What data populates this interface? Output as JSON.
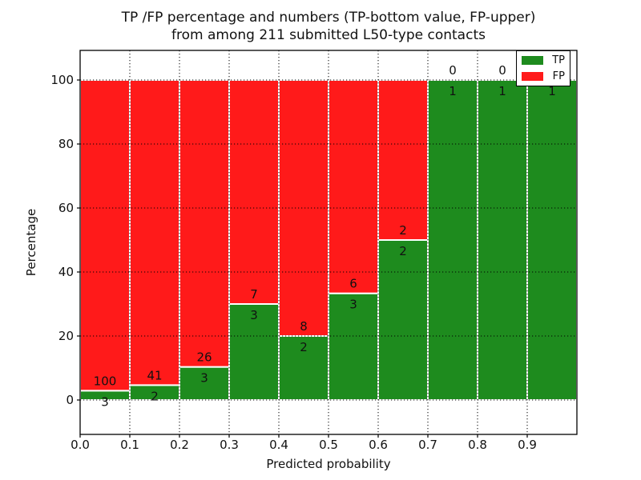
{
  "chart_data": {
    "type": "stacked_bar",
    "title_line1": "TP /FP percentage and numbers (TP-bottom value, FP-upper)",
    "title_line2": "from among 211 submitted L50-type contacts",
    "xlabel": "Predicted probability",
    "ylabel": "Percentage",
    "x_ticks": [
      "0.0",
      "0.1",
      "0.2",
      "0.3",
      "0.4",
      "0.5",
      "0.6",
      "0.7",
      "0.8",
      "0.9"
    ],
    "y_ticks": [
      0,
      20,
      40,
      60,
      80,
      100
    ],
    "xlim": [
      0.0,
      1.0
    ],
    "ylim": [
      -10.75,
      109.25
    ],
    "bar_width": 0.1,
    "grid": "black dotted, vertical at x ticks and horizontal at y ticks",
    "annotation_rule": "FP count printed just above TP/FP boundary, TP count just below it",
    "colors": {
      "tp": "#1e8b1e",
      "fp": "#ff1a1a",
      "bar_edge": "#ffffff",
      "grid": "#000000"
    },
    "legend": {
      "position": "upper right",
      "entries": [
        {
          "label": "TP",
          "color": "#1e8b1e"
        },
        {
          "label": "FP",
          "color": "#ff1a1a"
        }
      ]
    },
    "bars": [
      {
        "x_start": 0.0,
        "x_end": 0.1,
        "tp_count": 3,
        "fp_count": 100,
        "tp_pct": 2.913,
        "fp_pct": 97.087
      },
      {
        "x_start": 0.1,
        "x_end": 0.2,
        "tp_count": 2,
        "fp_count": 41,
        "tp_pct": 4.651,
        "fp_pct": 95.349
      },
      {
        "x_start": 0.2,
        "x_end": 0.3,
        "tp_count": 3,
        "fp_count": 26,
        "tp_pct": 10.345,
        "fp_pct": 89.655
      },
      {
        "x_start": 0.3,
        "x_end": 0.4,
        "tp_count": 3,
        "fp_count": 7,
        "tp_pct": 30.0,
        "fp_pct": 70.0
      },
      {
        "x_start": 0.4,
        "x_end": 0.5,
        "tp_count": 2,
        "fp_count": 8,
        "tp_pct": 20.0,
        "fp_pct": 80.0
      },
      {
        "x_start": 0.5,
        "x_end": 0.6,
        "tp_count": 3,
        "fp_count": 6,
        "tp_pct": 33.333,
        "fp_pct": 66.667
      },
      {
        "x_start": 0.6,
        "x_end": 0.7,
        "tp_count": 2,
        "fp_count": 2,
        "tp_pct": 50.0,
        "fp_pct": 50.0
      },
      {
        "x_start": 0.7,
        "x_end": 0.8,
        "tp_count": 1,
        "fp_count": 0,
        "tp_pct": 100.0,
        "fp_pct": 0.0
      },
      {
        "x_start": 0.8,
        "x_end": 0.9,
        "tp_count": 1,
        "fp_count": 0,
        "tp_pct": 100.0,
        "fp_pct": 0.0
      },
      {
        "x_start": 0.9,
        "x_end": 1.0,
        "tp_count": 1,
        "fp_count": 0,
        "tp_pct": 100.0,
        "fp_pct": 0.0
      }
    ]
  }
}
